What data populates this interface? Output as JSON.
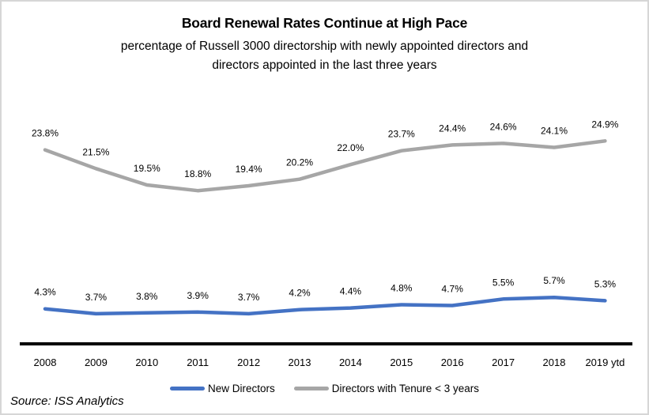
{
  "page": {
    "title": "Board Renewal Rates Continue at High Pace",
    "subtitle": "percentage of Russell 3000 directorship with newly appointed directors and directors appointed in the last three years",
    "source": "Source: ISS Analytics"
  },
  "chart_data": {
    "type": "line",
    "title": "Board Renewal Rates Continue at High Pace",
    "subtitle": "percentage of Russell 3000 directorship with newly appointed directors and directors appointed in the last three years",
    "categories": [
      "2008",
      "2009",
      "2010",
      "2011",
      "2012",
      "2013",
      "2014",
      "2015",
      "2016",
      "2017",
      "2018",
      "2019 ytd"
    ],
    "series": [
      {
        "name": "New Directors",
        "color": "#4472C4",
        "values": [
          4.3,
          3.7,
          3.8,
          3.9,
          3.7,
          4.2,
          4.4,
          4.8,
          4.7,
          5.5,
          5.7,
          5.3
        ]
      },
      {
        "name": "Directors with Tenure < 3 years",
        "color": "#A6A6A6",
        "values": [
          23.8,
          21.5,
          19.5,
          18.8,
          19.4,
          20.2,
          22.0,
          23.7,
          24.4,
          24.6,
          24.1,
          24.9
        ]
      }
    ],
    "data_labels": true,
    "label_format": "0.0%",
    "xlabel": "",
    "ylabel": "",
    "ylim": [
      0,
      30
    ],
    "grid": false,
    "legend_position": "bottom",
    "axis_line_color": "#000000",
    "source": "Source: ISS Analytics"
  }
}
